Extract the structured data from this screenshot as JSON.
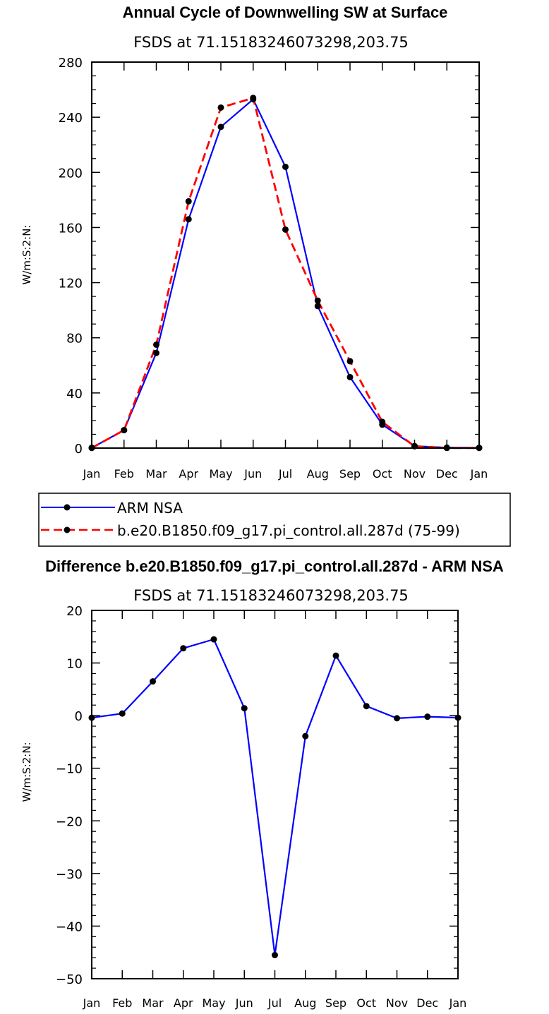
{
  "chart_data": [
    {
      "type": "line",
      "title": "Annual Cycle of Downwelling SW at Surface",
      "subtitle": "FSDS at 71.15183246073298,203.75",
      "xlabel": "",
      "ylabel": "W/m:S:2:N:",
      "categories": [
        "Jan",
        "Feb",
        "Mar",
        "Apr",
        "May",
        "Jun",
        "Jul",
        "Aug",
        "Sep",
        "Oct",
        "Nov",
        "Dec",
        "Jan"
      ],
      "ylim": [
        0,
        280
      ],
      "yticks": [
        0,
        40,
        80,
        120,
        160,
        200,
        240,
        280
      ],
      "ytick_labels": [
        "0",
        "40",
        "80",
        "120",
        "160",
        "200",
        "240",
        "280"
      ],
      "series": [
        {
          "name": "ARM NSA",
          "color": "#0000ff",
          "dash": "solid",
          "values": [
            0.2,
            13,
            69,
            166,
            233,
            253,
            204,
            103,
            51.5,
            17,
            1.5,
            0.3,
            0.2
          ]
        },
        {
          "name": "b.e20.B1850.f09_g17.pi_control.all.287d (75-99)",
          "color": "#ff0000",
          "dash": "dashed",
          "values": [
            0.1,
            13,
            75,
            179,
            247,
            254,
            158.5,
            107,
            63,
            19,
            1.3,
            0.1,
            0.1
          ]
        }
      ],
      "legend": {
        "placement": "bottom",
        "entries": [
          "ARM NSA",
          "b.e20.B1850.f09_g17.pi_control.all.287d (75-99)"
        ]
      }
    },
    {
      "type": "line",
      "title": "Difference b.e20.B1850.f09_g17.pi_control.all.287d - ARM NSA",
      "subtitle": "FSDS at 71.15183246073298,203.75",
      "xlabel": "",
      "ylabel": "W/m:S:2:N:",
      "categories": [
        "Jan",
        "Feb",
        "Mar",
        "Apr",
        "May",
        "Jun",
        "Jul",
        "Aug",
        "Sep",
        "Oct",
        "Nov",
        "Dec",
        "Jan"
      ],
      "ylim": [
        -50,
        20
      ],
      "yticks": [
        -50,
        -40,
        -30,
        -20,
        -10,
        0,
        10,
        20
      ],
      "ytick_labels": [
        "−50",
        "−40",
        "−30",
        "−20",
        "−10",
        "0",
        "10",
        "20"
      ],
      "series": [
        {
          "name": "Difference",
          "color": "#0000ff",
          "dash": "solid",
          "values": [
            -0.4,
            0.4,
            6.5,
            12.8,
            14.5,
            1.4,
            -45.5,
            -3.9,
            11.4,
            1.8,
            -0.5,
            -0.2,
            -0.4
          ]
        }
      ]
    }
  ]
}
